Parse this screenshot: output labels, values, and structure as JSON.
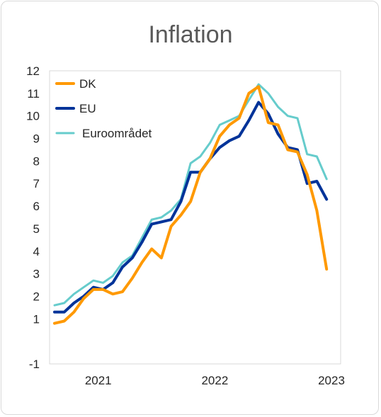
{
  "chart_data": {
    "type": "line",
    "title": "Inflation",
    "xlabel": "",
    "ylabel": "",
    "ylim": [
      -1,
      12
    ],
    "yticks": [
      -1,
      1,
      2,
      3,
      4,
      5,
      6,
      7,
      8,
      9,
      10,
      11,
      12
    ],
    "x_tick_labels": [
      {
        "label": "2021",
        "index": 4.5
      },
      {
        "label": "2022",
        "index": 16.5
      },
      {
        "label": "2023",
        "index": 28.5
      }
    ],
    "grid": false,
    "legend_position": "top-left",
    "months": [
      "2020-07",
      "2020-08",
      "2020-09",
      "2020-10",
      "2020-11",
      "2020-12",
      "2021-01",
      "2021-02",
      "2021-03",
      "2021-04",
      "2021-05",
      "2021-06",
      "2021-07",
      "2021-08",
      "2021-09",
      "2021-10",
      "2021-11",
      "2021-12",
      "2022-01",
      "2022-02",
      "2022-03",
      "2022-04",
      "2022-05",
      "2022-06",
      "2022-07",
      "2022-08",
      "2022-09",
      "2022-10",
      "2022-11",
      "2022-12",
      "2023-01",
      "2023-02",
      "2023-03",
      "2023-04",
      "2023-05"
    ],
    "series": [
      {
        "name": "DK",
        "color": "#ff9900",
        "values": [
          0.8,
          0.9,
          1.3,
          1.9,
          2.3,
          2.3,
          2.1,
          2.2,
          2.8,
          3.5,
          4.1,
          3.7,
          5.1,
          5.6,
          6.2,
          7.5,
          8.1,
          9.1,
          9.6,
          9.9,
          11.0,
          11.3,
          9.7,
          9.6,
          8.5,
          8.4,
          7.4,
          5.8,
          3.2
        ]
      },
      {
        "name": "EU",
        "color": "#003399",
        "values": [
          1.3,
          1.3,
          1.7,
          2.0,
          2.4,
          2.3,
          2.6,
          3.3,
          3.7,
          4.4,
          5.2,
          5.3,
          5.4,
          6.2,
          7.5,
          7.5,
          8.1,
          8.6,
          8.9,
          9.1,
          9.8,
          10.6,
          10.1,
          9.2,
          8.6,
          8.5,
          7.0,
          7.1,
          6.3
        ]
      },
      {
        "name": "Euroområdet",
        "color": "#66cccc",
        "values": [
          1.6,
          1.7,
          2.1,
          2.4,
          2.7,
          2.6,
          2.9,
          3.5,
          3.8,
          4.6,
          5.4,
          5.5,
          5.8,
          6.3,
          7.9,
          8.2,
          8.8,
          9.6,
          9.8,
          10.0,
          10.7,
          11.4,
          11.0,
          10.4,
          10.0,
          9.9,
          8.3,
          8.2,
          7.2
        ]
      }
    ],
    "series_start_index": 6
  }
}
